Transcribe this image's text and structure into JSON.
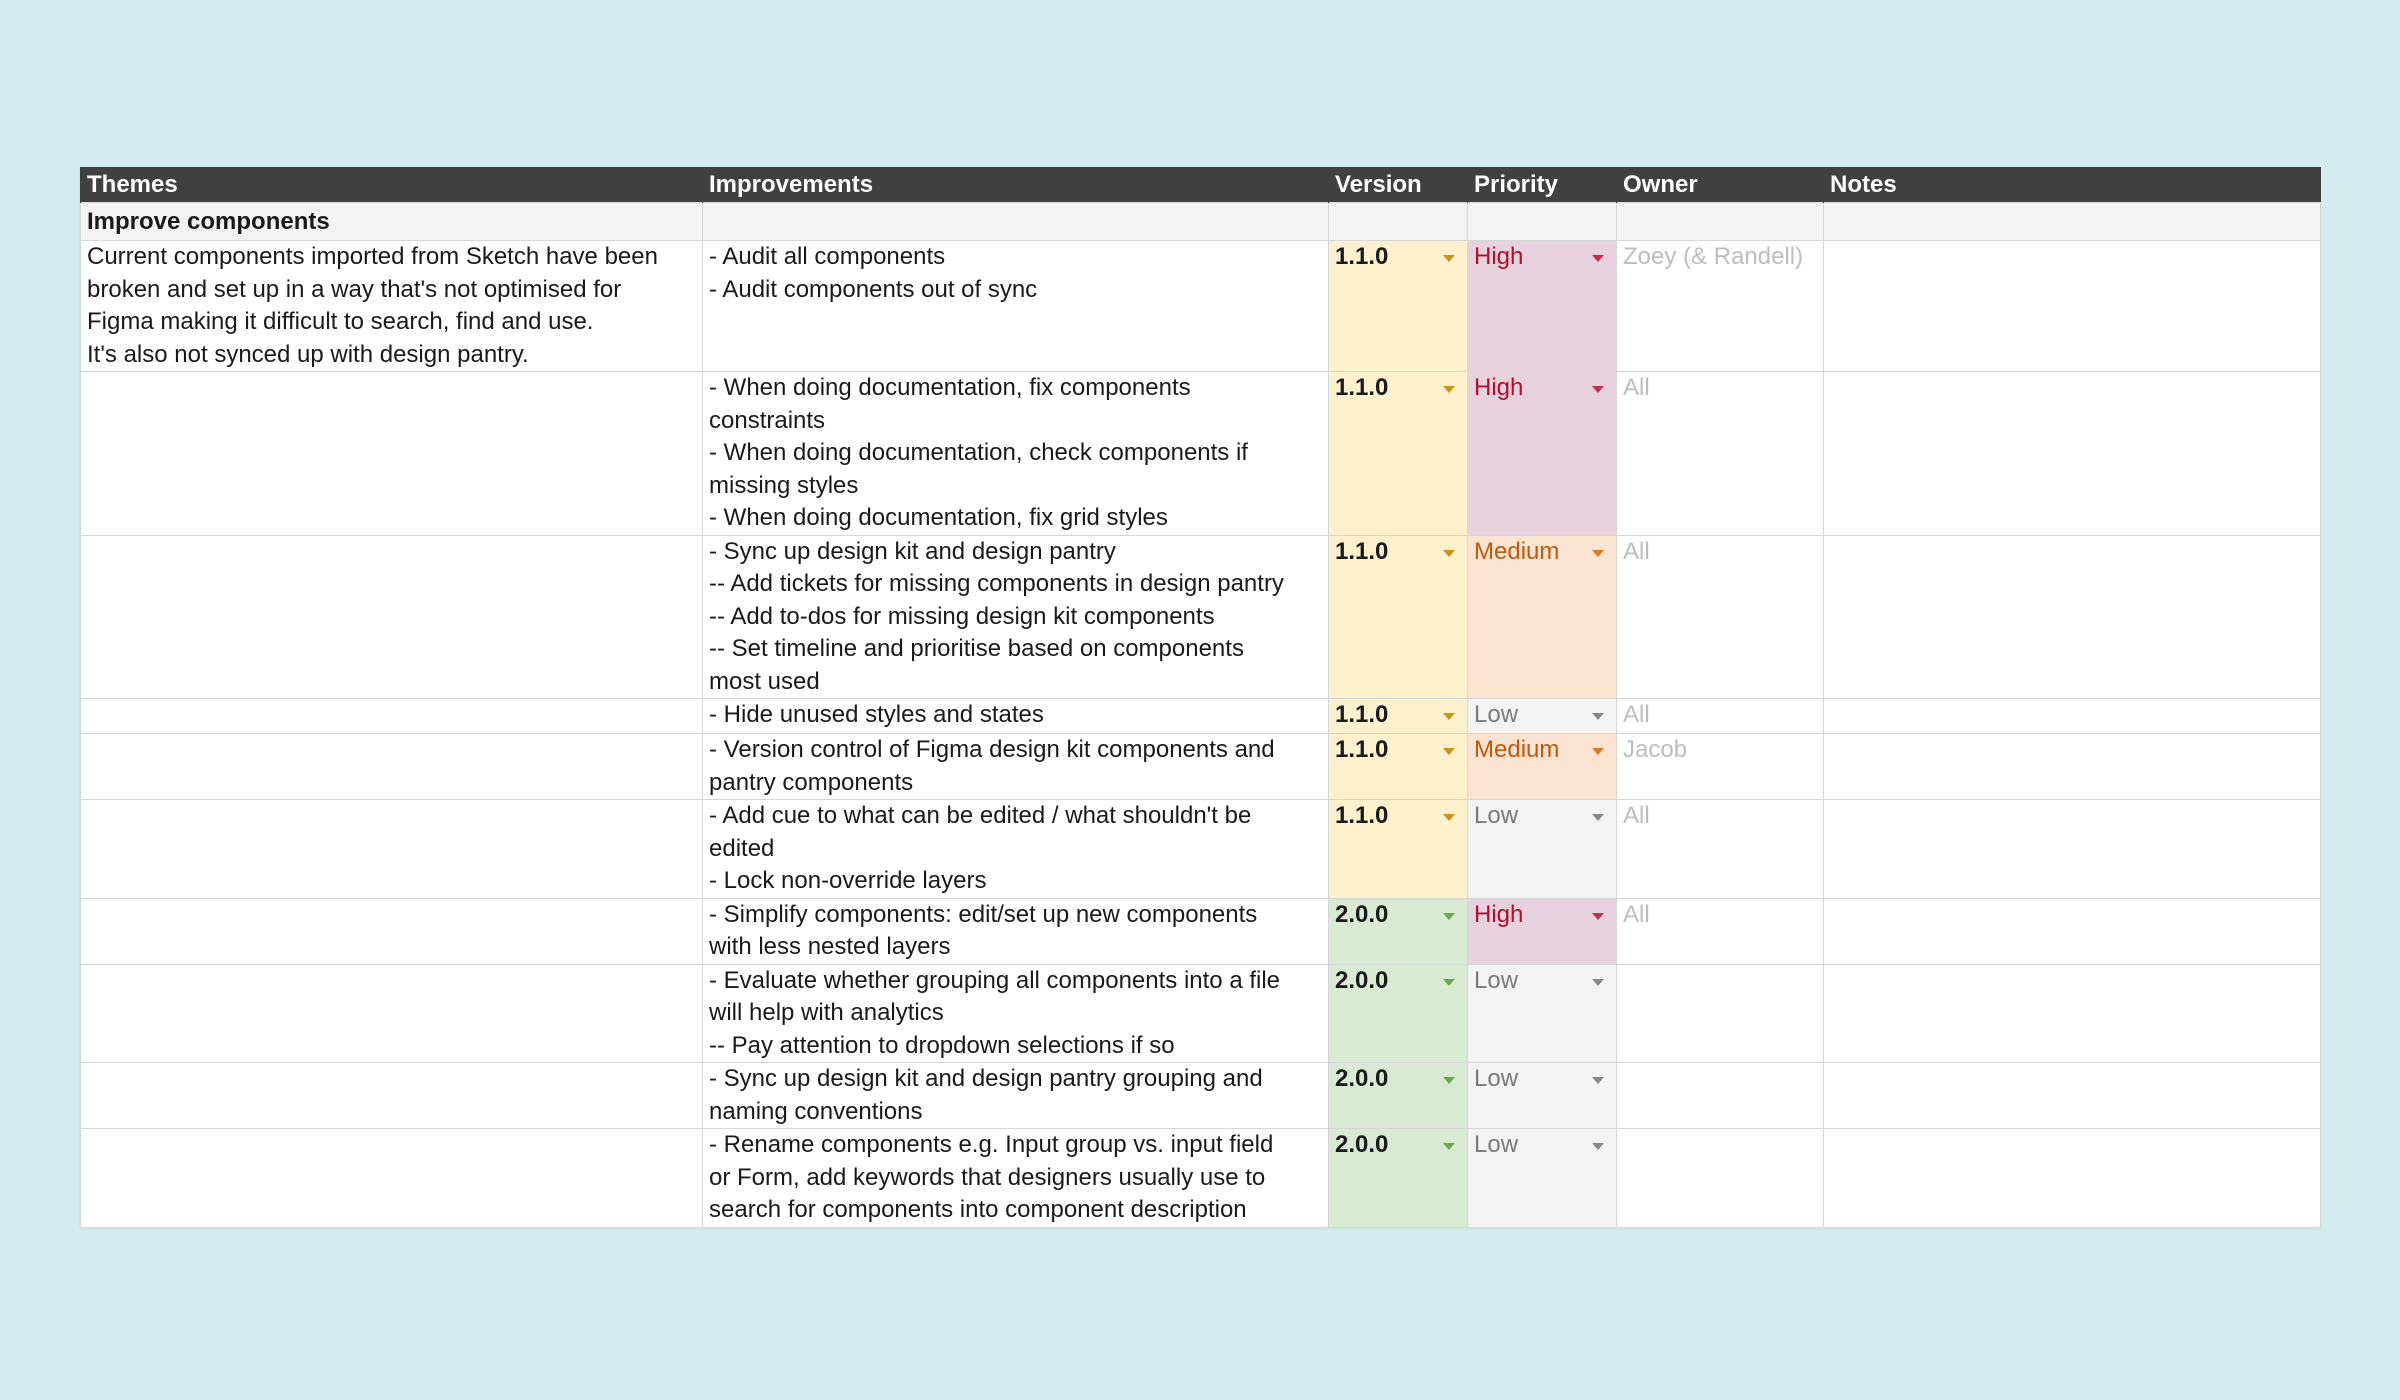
{
  "headers": {
    "themes": "Themes",
    "improvements": "Improvements",
    "version": "Version",
    "priority": "Priority",
    "owner": "Owner",
    "notes": "Notes"
  },
  "section": {
    "title": "Improve components",
    "description": "Current components imported from Sketch have been\nbroken and set up in a way that's not optimised for\nFigma making it difficult to search, find and use.\nIt's also not synced up with design pantry."
  },
  "rows": [
    {
      "improvement": "- Audit all components\n- Audit components out of sync",
      "version": "1.1.0",
      "priority": "High",
      "owner": "Zoey (& Randell)"
    },
    {
      "improvement": "- When doing documentation, fix components\nconstraints\n- When doing documentation, check components if\nmissing styles\n- When doing documentation, fix grid styles",
      "version": "1.1.0",
      "priority": "High",
      "owner": "All"
    },
    {
      "improvement": "- Sync up design kit and design pantry\n-- Add tickets for missing components in design pantry\n-- Add to-dos for missing design kit components\n-- Set timeline and prioritise based on components\nmost used",
      "version": "1.1.0",
      "priority": "Medium",
      "owner": "All"
    },
    {
      "improvement": "- Hide unused styles and states",
      "version": "1.1.0",
      "priority": "Low",
      "owner": "All"
    },
    {
      "improvement": "- Version control of Figma design kit components and\npantry components",
      "version": "1.1.0",
      "priority": "Medium",
      "owner": "Jacob"
    },
    {
      "improvement": "- Add cue to what can be edited / what shouldn't be\nedited\n- Lock non-override layers",
      "version": "1.1.0",
      "priority": "Low",
      "owner": "All"
    },
    {
      "improvement": "- Simplify components: edit/set up new components\nwith less nested layers",
      "version": "2.0.0",
      "priority": "High",
      "owner": "All"
    },
    {
      "improvement": "- Evaluate whether grouping all components into a file\nwill help with analytics\n-- Pay attention to dropdown selections if so",
      "version": "2.0.0",
      "priority": "Low",
      "owner": ""
    },
    {
      "improvement": "- Sync up design kit and design pantry grouping and\nnaming conventions",
      "version": "2.0.0",
      "priority": "Low",
      "owner": ""
    },
    {
      "improvement": "- Rename components e.g. Input group vs. input field\nor Form, add keywords that designers usually use to\nsearch for components into component description",
      "version": "2.0.0",
      "priority": "Low",
      "owner": ""
    }
  ],
  "colors": {
    "background": "#d5ecee",
    "header": "#404040",
    "version_1": "#fdf1cd",
    "version_2": "#d9ead3",
    "priority_high": "#e6d1dc",
    "priority_medium": "#fbe3d1",
    "priority_low": "#f3f3f3"
  }
}
